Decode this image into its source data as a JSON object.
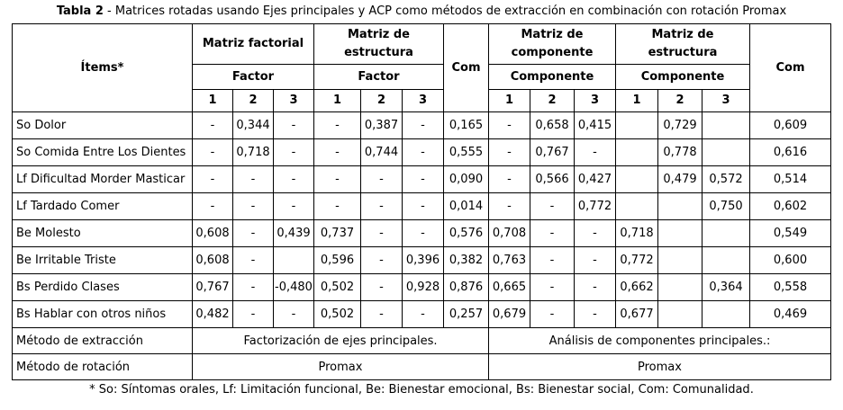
{
  "title": {
    "bold": "Tabla 2",
    "rest": "- Matrices rotadas usando Ejes principales y ACP como métodos de extracción en combinación con rotación Promax"
  },
  "table": {
    "header": {
      "items": "Ítems*",
      "com_left": "Com",
      "com_right": "Com",
      "group1": {
        "title": "Matriz factorial",
        "sub": "Factor",
        "c1": "1",
        "c2": "2",
        "c3": "3"
      },
      "group2": {
        "title": "Matriz de estructura",
        "sub": "Factor",
        "c1": "1",
        "c2": "2",
        "c3": "3"
      },
      "group3": {
        "title": "Matriz de componente",
        "sub": "Componente",
        "c1": "1",
        "c2": "2",
        "c3": "3"
      },
      "group4": {
        "title": "Matriz de estructura",
        "sub": "Componente",
        "c1": "1",
        "c2": "2",
        "c3": "3"
      }
    },
    "rows": [
      {
        "item": "So Dolor",
        "values": [
          "-",
          "0,344",
          "-",
          "-",
          "0,387",
          "-",
          "0,165",
          "-",
          "0,658",
          "0,415",
          "",
          "0,729",
          "",
          "0,609"
        ]
      },
      {
        "item": "So Comida Entre Los Dientes",
        "values": [
          "-",
          "0,718",
          "-",
          "-",
          "0,744",
          "-",
          "0,555",
          "-",
          "0,767",
          "-",
          "",
          "0,778",
          "",
          "0,616"
        ]
      },
      {
        "item": "Lf Dificultad Morder Masticar",
        "values": [
          "-",
          "-",
          "-",
          "-",
          "-",
          "-",
          "0,090",
          "-",
          "0,566",
          "0,427",
          "",
          "0,479",
          "0,572",
          "0,514"
        ]
      },
      {
        "item": "Lf Tardado Comer",
        "values": [
          "-",
          "-",
          "-",
          "-",
          "-",
          "-",
          "0,014",
          "-",
          "-",
          "0,772",
          "",
          "",
          "0,750",
          "0,602"
        ]
      },
      {
        "item": "Be Molesto",
        "values": [
          "0,608",
          "-",
          "0,439",
          "0,737",
          "-",
          "-",
          "0,576",
          "0,708",
          "-",
          "-",
          "0,718",
          "",
          "",
          "0,549"
        ]
      },
      {
        "item": "Be Irritable Triste",
        "values": [
          "0,608",
          "-",
          "",
          "0,596",
          "-",
          "0,396",
          "0,382",
          "0,763",
          "-",
          "-",
          "0,772",
          "",
          "",
          "0,600"
        ]
      },
      {
        "item": "Bs Perdido Clases",
        "values": [
          "0,767",
          "-",
          "-0,480",
          "0,502",
          "-",
          "0,928",
          "0,876",
          "0,665",
          "-",
          "-",
          "0,662",
          "",
          "0,364",
          "0,558"
        ]
      },
      {
        "item": "Bs Hablar con otros niños",
        "values": [
          "0,482",
          "-",
          "-",
          "0,502",
          "-",
          "-",
          "0,257",
          "0,679",
          "-",
          "-",
          "0,677",
          "",
          "",
          "0,469"
        ]
      }
    ],
    "extraction": {
      "label": "Método de extracción",
      "left": "Factorización de ejes principales.",
      "right": "Análisis de componentes principales.:"
    },
    "rotation": {
      "label": "Método de rotación",
      "left": "Promax",
      "right": "Promax"
    }
  },
  "footnote": "* So: Síntomas orales, Lf: Limitación funcional, Be: Bienestar emocional, Bs: Bienestar social, Com: Comunalidad."
}
